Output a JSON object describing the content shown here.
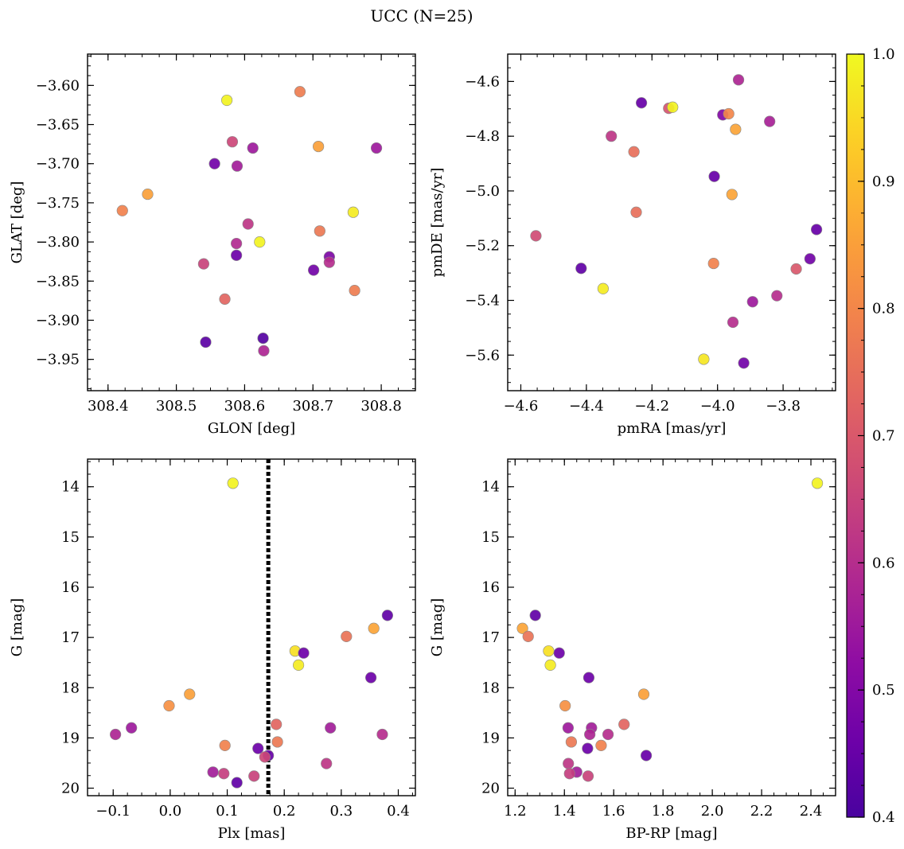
{
  "title": "UCC (N=25)",
  "colorbar": {
    "range": [
      0.4,
      1.0
    ],
    "colormap": "plasma",
    "ticks": [
      0.4,
      0.5,
      0.6,
      0.7,
      0.8,
      0.9,
      1.0
    ],
    "tick_labels": [
      "0.4",
      "0.5",
      "0.6",
      "0.7",
      "0.8",
      "0.9",
      "1.0"
    ]
  },
  "chart_data": [
    {
      "type": "scatter",
      "xlabel": "GLON [deg]",
      "ylabel": "GLAT [deg]",
      "xlim": [
        308.37,
        308.85
      ],
      "ylim": [
        -3.99,
        -3.56
      ],
      "yinvert": false,
      "xticks": [
        308.4,
        308.5,
        308.6,
        308.7,
        308.8
      ],
      "xtick_labels": [
        "308.4",
        "308.5",
        "308.6",
        "308.7",
        "308.8"
      ],
      "yticks": [
        -3.6,
        -3.65,
        -3.7,
        -3.75,
        -3.8,
        -3.85,
        -3.9,
        -3.95
      ],
      "ytick_labels": [
        "−3.60",
        "−3.65",
        "−3.70",
        "−3.75",
        "−3.80",
        "−3.85",
        "−3.90",
        "−3.95"
      ],
      "points": [
        {
          "x": 308.574,
          "y": -3.619,
          "c": 0.99
        },
        {
          "x": 308.681,
          "y": -3.608,
          "c": 0.78
        },
        {
          "x": 308.582,
          "y": -3.672,
          "c": 0.66
        },
        {
          "x": 308.612,
          "y": -3.68,
          "c": 0.55
        },
        {
          "x": 308.708,
          "y": -3.678,
          "c": 0.85
        },
        {
          "x": 308.793,
          "y": -3.68,
          "c": 0.55
        },
        {
          "x": 308.556,
          "y": -3.7,
          "c": 0.47
        },
        {
          "x": 308.589,
          "y": -3.703,
          "c": 0.56
        },
        {
          "x": 308.458,
          "y": -3.739,
          "c": 0.85
        },
        {
          "x": 308.421,
          "y": -3.76,
          "c": 0.79
        },
        {
          "x": 308.759,
          "y": -3.762,
          "c": 0.98
        },
        {
          "x": 308.605,
          "y": -3.777,
          "c": 0.62
        },
        {
          "x": 308.71,
          "y": -3.786,
          "c": 0.77
        },
        {
          "x": 308.588,
          "y": -3.802,
          "c": 0.59
        },
        {
          "x": 308.622,
          "y": -3.8,
          "c": 0.99
        },
        {
          "x": 308.588,
          "y": -3.817,
          "c": 0.46
        },
        {
          "x": 308.724,
          "y": -3.819,
          "c": 0.49
        },
        {
          "x": 308.724,
          "y": -3.826,
          "c": 0.6
        },
        {
          "x": 308.54,
          "y": -3.828,
          "c": 0.65
        },
        {
          "x": 308.701,
          "y": -3.836,
          "c": 0.47
        },
        {
          "x": 308.761,
          "y": -3.862,
          "c": 0.78
        },
        {
          "x": 308.571,
          "y": -3.873,
          "c": 0.73
        },
        {
          "x": 308.543,
          "y": -3.928,
          "c": 0.43
        },
        {
          "x": 308.627,
          "y": -3.923,
          "c": 0.42
        },
        {
          "x": 308.628,
          "y": -3.939,
          "c": 0.58
        }
      ]
    },
    {
      "type": "scatter",
      "xlabel": "pmRA [mas/yr]",
      "ylabel": "pmDE [mas/yr]",
      "xlim": [
        -4.64,
        -3.64
      ],
      "ylim": [
        -5.73,
        -4.5
      ],
      "yinvert": false,
      "xticks": [
        -4.6,
        -4.4,
        -4.2,
        -4.0,
        -3.8
      ],
      "xtick_labels": [
        "−4.6",
        "−4.4",
        "−4.2",
        "−4.0",
        "−3.8"
      ],
      "yticks": [
        -4.6,
        -4.8,
        -5.0,
        -5.2,
        -5.4,
        -5.6
      ],
      "ytick_labels": [
        "−4.6",
        "−4.8",
        "−5.0",
        "−5.2",
        "−5.4",
        "−5.6"
      ],
      "points": [
        {
          "x": -3.936,
          "y": -4.594,
          "c": 0.58
        },
        {
          "x": -4.232,
          "y": -4.678,
          "c": 0.45
        },
        {
          "x": -4.149,
          "y": -4.698,
          "c": 0.69
        },
        {
          "x": -4.137,
          "y": -4.694,
          "c": 0.99
        },
        {
          "x": -3.984,
          "y": -4.722,
          "c": 0.5
        },
        {
          "x": -3.966,
          "y": -4.718,
          "c": 0.8
        },
        {
          "x": -3.841,
          "y": -4.746,
          "c": 0.57
        },
        {
          "x": -3.945,
          "y": -4.775,
          "c": 0.86
        },
        {
          "x": -4.324,
          "y": -4.8,
          "c": 0.62
        },
        {
          "x": -4.255,
          "y": -4.857,
          "c": 0.75
        },
        {
          "x": -4.01,
          "y": -4.947,
          "c": 0.45
        },
        {
          "x": -3.956,
          "y": -5.013,
          "c": 0.86
        },
        {
          "x": -4.248,
          "y": -5.078,
          "c": 0.75
        },
        {
          "x": -3.698,
          "y": -5.141,
          "c": 0.45
        },
        {
          "x": -4.554,
          "y": -5.164,
          "c": 0.67
        },
        {
          "x": -3.718,
          "y": -5.248,
          "c": 0.47
        },
        {
          "x": -4.012,
          "y": -5.265,
          "c": 0.79
        },
        {
          "x": -4.416,
          "y": -5.283,
          "c": 0.44
        },
        {
          "x": -3.76,
          "y": -5.285,
          "c": 0.7
        },
        {
          "x": -4.349,
          "y": -5.357,
          "c": 0.98
        },
        {
          "x": -3.819,
          "y": -5.383,
          "c": 0.6
        },
        {
          "x": -3.893,
          "y": -5.405,
          "c": 0.55
        },
        {
          "x": -3.953,
          "y": -5.48,
          "c": 0.6
        },
        {
          "x": -4.042,
          "y": -5.615,
          "c": 0.97
        },
        {
          "x": -3.92,
          "y": -5.629,
          "c": 0.47
        }
      ]
    },
    {
      "type": "scatter",
      "xlabel": "Plx [mas]",
      "ylabel": "G [mag]",
      "xlim": [
        -0.145,
        0.43
      ],
      "ylim": [
        13.45,
        20.15
      ],
      "yinvert": true,
      "xticks": [
        -0.1,
        0.0,
        0.1,
        0.2,
        0.3,
        0.4
      ],
      "xtick_labels": [
        "−0.1",
        "0.0",
        "0.1",
        "0.2",
        "0.3",
        "0.4"
      ],
      "yticks": [
        14,
        15,
        16,
        17,
        18,
        19,
        20
      ],
      "ytick_labels": [
        "14",
        "15",
        "16",
        "17",
        "18",
        "19",
        "20"
      ],
      "vline": {
        "x": 0.172,
        "style": "dotted"
      },
      "points": [
        {
          "x": 0.11,
          "y": 13.93,
          "c": 0.99
        },
        {
          "x": 0.381,
          "y": 16.56,
          "c": 0.44
        },
        {
          "x": 0.357,
          "y": 16.82,
          "c": 0.86
        },
        {
          "x": 0.309,
          "y": 16.98,
          "c": 0.76
        },
        {
          "x": 0.219,
          "y": 17.27,
          "c": 0.96
        },
        {
          "x": 0.234,
          "y": 17.31,
          "c": 0.46
        },
        {
          "x": 0.225,
          "y": 17.55,
          "c": 0.98
        },
        {
          "x": 0.352,
          "y": 17.8,
          "c": 0.46
        },
        {
          "x": 0.034,
          "y": 18.13,
          "c": 0.85
        },
        {
          "x": -0.002,
          "y": 18.36,
          "c": 0.82
        },
        {
          "x": 0.186,
          "y": 18.73,
          "c": 0.73
        },
        {
          "x": -0.068,
          "y": 18.8,
          "c": 0.55
        },
        {
          "x": 0.281,
          "y": 18.8,
          "c": 0.56
        },
        {
          "x": -0.096,
          "y": 18.93,
          "c": 0.58
        },
        {
          "x": 0.372,
          "y": 18.93,
          "c": 0.6
        },
        {
          "x": 0.188,
          "y": 19.08,
          "c": 0.77
        },
        {
          "x": 0.096,
          "y": 19.15,
          "c": 0.79
        },
        {
          "x": 0.154,
          "y": 19.21,
          "c": 0.46
        },
        {
          "x": 0.172,
          "y": 19.35,
          "c": 0.45
        },
        {
          "x": 0.166,
          "y": 19.38,
          "c": 0.66
        },
        {
          "x": 0.274,
          "y": 19.51,
          "c": 0.62
        },
        {
          "x": 0.075,
          "y": 19.68,
          "c": 0.56
        },
        {
          "x": 0.094,
          "y": 19.71,
          "c": 0.64
        },
        {
          "x": 0.147,
          "y": 19.76,
          "c": 0.65
        },
        {
          "x": 0.117,
          "y": 19.89,
          "c": 0.44
        }
      ]
    },
    {
      "type": "scatter",
      "xlabel": "BP-RP [mag]",
      "ylabel": "G [mag]",
      "xlim": [
        1.17,
        2.5
      ],
      "ylim": [
        13.45,
        20.15
      ],
      "yinvert": true,
      "xticks": [
        1.2,
        1.4,
        1.6,
        1.8,
        2.0,
        2.2,
        2.4
      ],
      "xtick_labels": [
        "1.2",
        "1.4",
        "1.6",
        "1.8",
        "2.0",
        "2.2",
        "2.4"
      ],
      "yticks": [
        14,
        15,
        16,
        17,
        18,
        19,
        20
      ],
      "ytick_labels": [
        "14",
        "15",
        "16",
        "17",
        "18",
        "19",
        "20"
      ],
      "points": [
        {
          "x": 2.426,
          "y": 13.93,
          "c": 0.99
        },
        {
          "x": 1.282,
          "y": 16.56,
          "c": 0.44
        },
        {
          "x": 1.23,
          "y": 16.82,
          "c": 0.86
        },
        {
          "x": 1.253,
          "y": 16.98,
          "c": 0.76
        },
        {
          "x": 1.336,
          "y": 17.27,
          "c": 0.96
        },
        {
          "x": 1.379,
          "y": 17.31,
          "c": 0.46
        },
        {
          "x": 1.343,
          "y": 17.55,
          "c": 0.98
        },
        {
          "x": 1.499,
          "y": 17.8,
          "c": 0.46
        },
        {
          "x": 1.722,
          "y": 18.13,
          "c": 0.85
        },
        {
          "x": 1.403,
          "y": 18.36,
          "c": 0.82
        },
        {
          "x": 1.642,
          "y": 18.73,
          "c": 0.73
        },
        {
          "x": 1.415,
          "y": 18.8,
          "c": 0.55
        },
        {
          "x": 1.51,
          "y": 18.8,
          "c": 0.56
        },
        {
          "x": 1.503,
          "y": 18.93,
          "c": 0.58
        },
        {
          "x": 1.577,
          "y": 18.93,
          "c": 0.6
        },
        {
          "x": 1.428,
          "y": 19.08,
          "c": 0.77
        },
        {
          "x": 1.549,
          "y": 19.15,
          "c": 0.79
        },
        {
          "x": 1.494,
          "y": 19.21,
          "c": 0.46
        },
        {
          "x": 1.732,
          "y": 19.35,
          "c": 0.45
        },
        {
          "x": 1.416,
          "y": 19.51,
          "c": 0.62
        },
        {
          "x": 1.45,
          "y": 19.68,
          "c": 0.56
        },
        {
          "x": 1.421,
          "y": 19.71,
          "c": 0.64
        },
        {
          "x": 1.496,
          "y": 19.76,
          "c": 0.65
        }
      ]
    }
  ]
}
